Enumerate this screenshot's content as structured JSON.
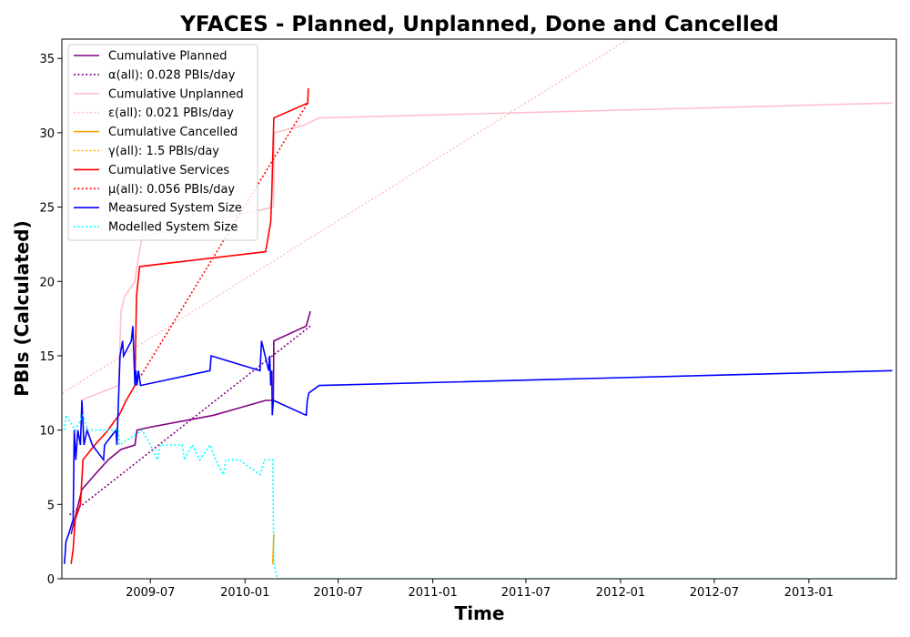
{
  "chart_data": {
    "type": "line",
    "title": "YFACES - Planned, Unplanned, Done  and Cancelled",
    "xlabel": "Time",
    "ylabel": "PBIs (Calculated)",
    "xlim": [
      "2009-01-10",
      "2013-06-20"
    ],
    "ylim": [
      0,
      36.3
    ],
    "x_ticks": [
      "2009-07",
      "2010-01",
      "2010-07",
      "2011-01",
      "2011-07",
      "2012-01",
      "2012-07",
      "2013-01"
    ],
    "y_ticks": [
      0,
      5,
      10,
      15,
      20,
      25,
      30,
      35
    ],
    "grid": false,
    "legend_position": "top-left",
    "series": [
      {
        "name": "Cumulative Planned",
        "color": "#800080",
        "style": "solid",
        "points": [
          [
            "2009-01-28",
            3
          ],
          [
            "2009-02-04",
            4
          ],
          [
            "2009-02-18",
            6
          ],
          [
            "2009-03-15",
            7
          ],
          [
            "2009-04-10",
            8
          ],
          [
            "2009-05-05",
            8.7
          ],
          [
            "2009-06-01",
            9
          ],
          [
            "2009-06-05",
            10
          ],
          [
            "2009-07-01",
            10.2
          ],
          [
            "2009-11-01",
            11
          ],
          [
            "2010-02-10",
            12
          ],
          [
            "2010-02-25",
            12
          ],
          [
            "2010-02-26",
            16
          ],
          [
            "2010-04-30",
            17
          ],
          [
            "2010-05-08",
            18
          ]
        ]
      },
      {
        "name": "α(all): 0.028 PBIs/day",
        "color": "#800080",
        "style": "dotted",
        "points": [
          [
            "2009-01-25",
            4.3
          ],
          [
            "2010-05-08",
            17
          ]
        ]
      },
      {
        "name": "Cumulative Unplanned",
        "color": "#ffc0cb",
        "style": "solid",
        "points": [
          [
            "2009-02-15",
            12
          ],
          [
            "2009-04-30",
            13
          ],
          [
            "2009-05-05",
            18
          ],
          [
            "2009-05-12",
            19
          ],
          [
            "2009-06-01",
            20
          ],
          [
            "2009-06-05",
            21
          ],
          [
            "2009-06-15",
            23
          ],
          [
            "2010-02-25",
            25
          ],
          [
            "2010-02-27",
            30
          ],
          [
            "2010-04-25",
            30.5
          ],
          [
            "2010-05-25",
            31
          ],
          [
            "2013-06-12",
            32
          ]
        ]
      },
      {
        "name": "ε(all): 0.021 PBIs/day",
        "color": "#ffc0cb",
        "style": "dotted",
        "points": [
          [
            "2009-01-12",
            12.5
          ],
          [
            "2012-01-15",
            36.3
          ]
        ]
      },
      {
        "name": "Cumulative Cancelled",
        "color": "#ffa500",
        "style": "solid",
        "points": [
          [
            "2010-02-24",
            1
          ],
          [
            "2010-02-25",
            2
          ],
          [
            "2010-02-26",
            3
          ]
        ]
      },
      {
        "name": "γ(all): 1.5 PBIs/day",
        "color": "#ffa500",
        "style": "dotted",
        "points": [
          [
            "2010-02-24",
            1.2
          ],
          [
            "2010-02-26",
            3
          ]
        ]
      },
      {
        "name": "Cumulative Services",
        "color": "#ff0000",
        "style": "solid",
        "points": [
          [
            "2009-01-28",
            1
          ],
          [
            "2009-02-01",
            2
          ],
          [
            "2009-02-05",
            4
          ],
          [
            "2009-02-15",
            5
          ],
          [
            "2009-02-20",
            8
          ],
          [
            "2009-03-15",
            9
          ],
          [
            "2009-04-10",
            10
          ],
          [
            "2009-04-20",
            10.5
          ],
          [
            "2009-05-01",
            11
          ],
          [
            "2009-05-15",
            12
          ],
          [
            "2009-06-01",
            13
          ],
          [
            "2009-06-04",
            19
          ],
          [
            "2009-06-07",
            20
          ],
          [
            "2009-06-10",
            21
          ],
          [
            "2010-02-10",
            22
          ],
          [
            "2010-02-15",
            23
          ],
          [
            "2010-02-20",
            24
          ],
          [
            "2010-02-22",
            26
          ],
          [
            "2010-02-26",
            31
          ],
          [
            "2010-05-03",
            32
          ],
          [
            "2010-05-04",
            33
          ]
        ]
      },
      {
        "name": "μ(all): 0.056 PBIs/day",
        "color": "#ff0000",
        "style": "dotted",
        "points": [
          [
            "2009-06-01",
            13
          ],
          [
            "2010-05-03",
            32
          ]
        ]
      },
      {
        "name": "Measured System Size",
        "color": "#0000ff",
        "style": "solid",
        "points": [
          [
            "2009-01-15",
            1
          ],
          [
            "2009-01-18",
            2.5
          ],
          [
            "2009-01-25",
            3.2
          ],
          [
            "2009-02-01",
            4
          ],
          [
            "2009-02-03",
            10
          ],
          [
            "2009-02-06",
            8
          ],
          [
            "2009-02-10",
            10
          ],
          [
            "2009-02-15",
            9
          ],
          [
            "2009-02-18",
            12
          ],
          [
            "2009-02-22",
            9
          ],
          [
            "2009-02-28",
            10
          ],
          [
            "2009-03-10",
            9
          ],
          [
            "2009-04-01",
            8
          ],
          [
            "2009-04-03",
            9
          ],
          [
            "2009-04-25",
            10
          ],
          [
            "2009-04-27",
            9
          ],
          [
            "2009-05-03",
            15
          ],
          [
            "2009-05-08",
            16
          ],
          [
            "2009-05-10",
            15
          ],
          [
            "2009-05-25",
            16
          ],
          [
            "2009-05-28",
            17
          ],
          [
            "2009-06-01",
            13
          ],
          [
            "2009-06-03",
            14
          ],
          [
            "2009-06-05",
            13
          ],
          [
            "2009-06-08",
            14
          ],
          [
            "2009-06-12",
            13
          ],
          [
            "2009-10-25",
            14
          ],
          [
            "2009-10-27",
            15
          ],
          [
            "2010-01-30",
            14
          ],
          [
            "2010-02-02",
            16
          ],
          [
            "2010-02-16",
            14
          ],
          [
            "2010-02-18",
            15
          ],
          [
            "2010-02-20",
            13
          ],
          [
            "2010-02-22",
            14
          ],
          [
            "2010-02-23",
            11
          ],
          [
            "2010-02-25",
            12
          ],
          [
            "2010-04-30",
            11
          ],
          [
            "2010-05-02",
            12
          ],
          [
            "2010-05-05",
            12.5
          ],
          [
            "2010-05-25",
            13
          ],
          [
            "2013-06-12",
            14
          ]
        ]
      },
      {
        "name": "Modelled System Size",
        "color": "#00ffff",
        "style": "dotted",
        "points": [
          [
            "2009-01-15",
            10
          ],
          [
            "2009-01-18",
            11
          ],
          [
            "2009-02-05",
            10
          ],
          [
            "2009-02-20",
            11
          ],
          [
            "2009-03-01",
            10
          ],
          [
            "2009-04-30",
            10
          ],
          [
            "2009-05-02",
            9
          ],
          [
            "2009-06-15",
            10
          ],
          [
            "2009-07-01",
            9
          ],
          [
            "2009-07-15",
            8
          ],
          [
            "2009-07-20",
            9
          ],
          [
            "2009-09-01",
            9
          ],
          [
            "2009-09-05",
            8
          ],
          [
            "2009-09-20",
            9
          ],
          [
            "2009-10-05",
            8
          ],
          [
            "2009-10-25",
            9
          ],
          [
            "2009-11-05",
            8
          ],
          [
            "2009-11-20",
            7
          ],
          [
            "2009-11-25",
            8
          ],
          [
            "2009-12-20",
            8
          ],
          [
            "2010-01-30",
            7
          ],
          [
            "2010-02-08",
            8
          ],
          [
            "2010-02-24",
            8
          ],
          [
            "2010-02-26",
            1
          ],
          [
            "2010-03-05",
            0
          ],
          [
            "2013-06-12",
            0
          ]
        ]
      }
    ]
  }
}
